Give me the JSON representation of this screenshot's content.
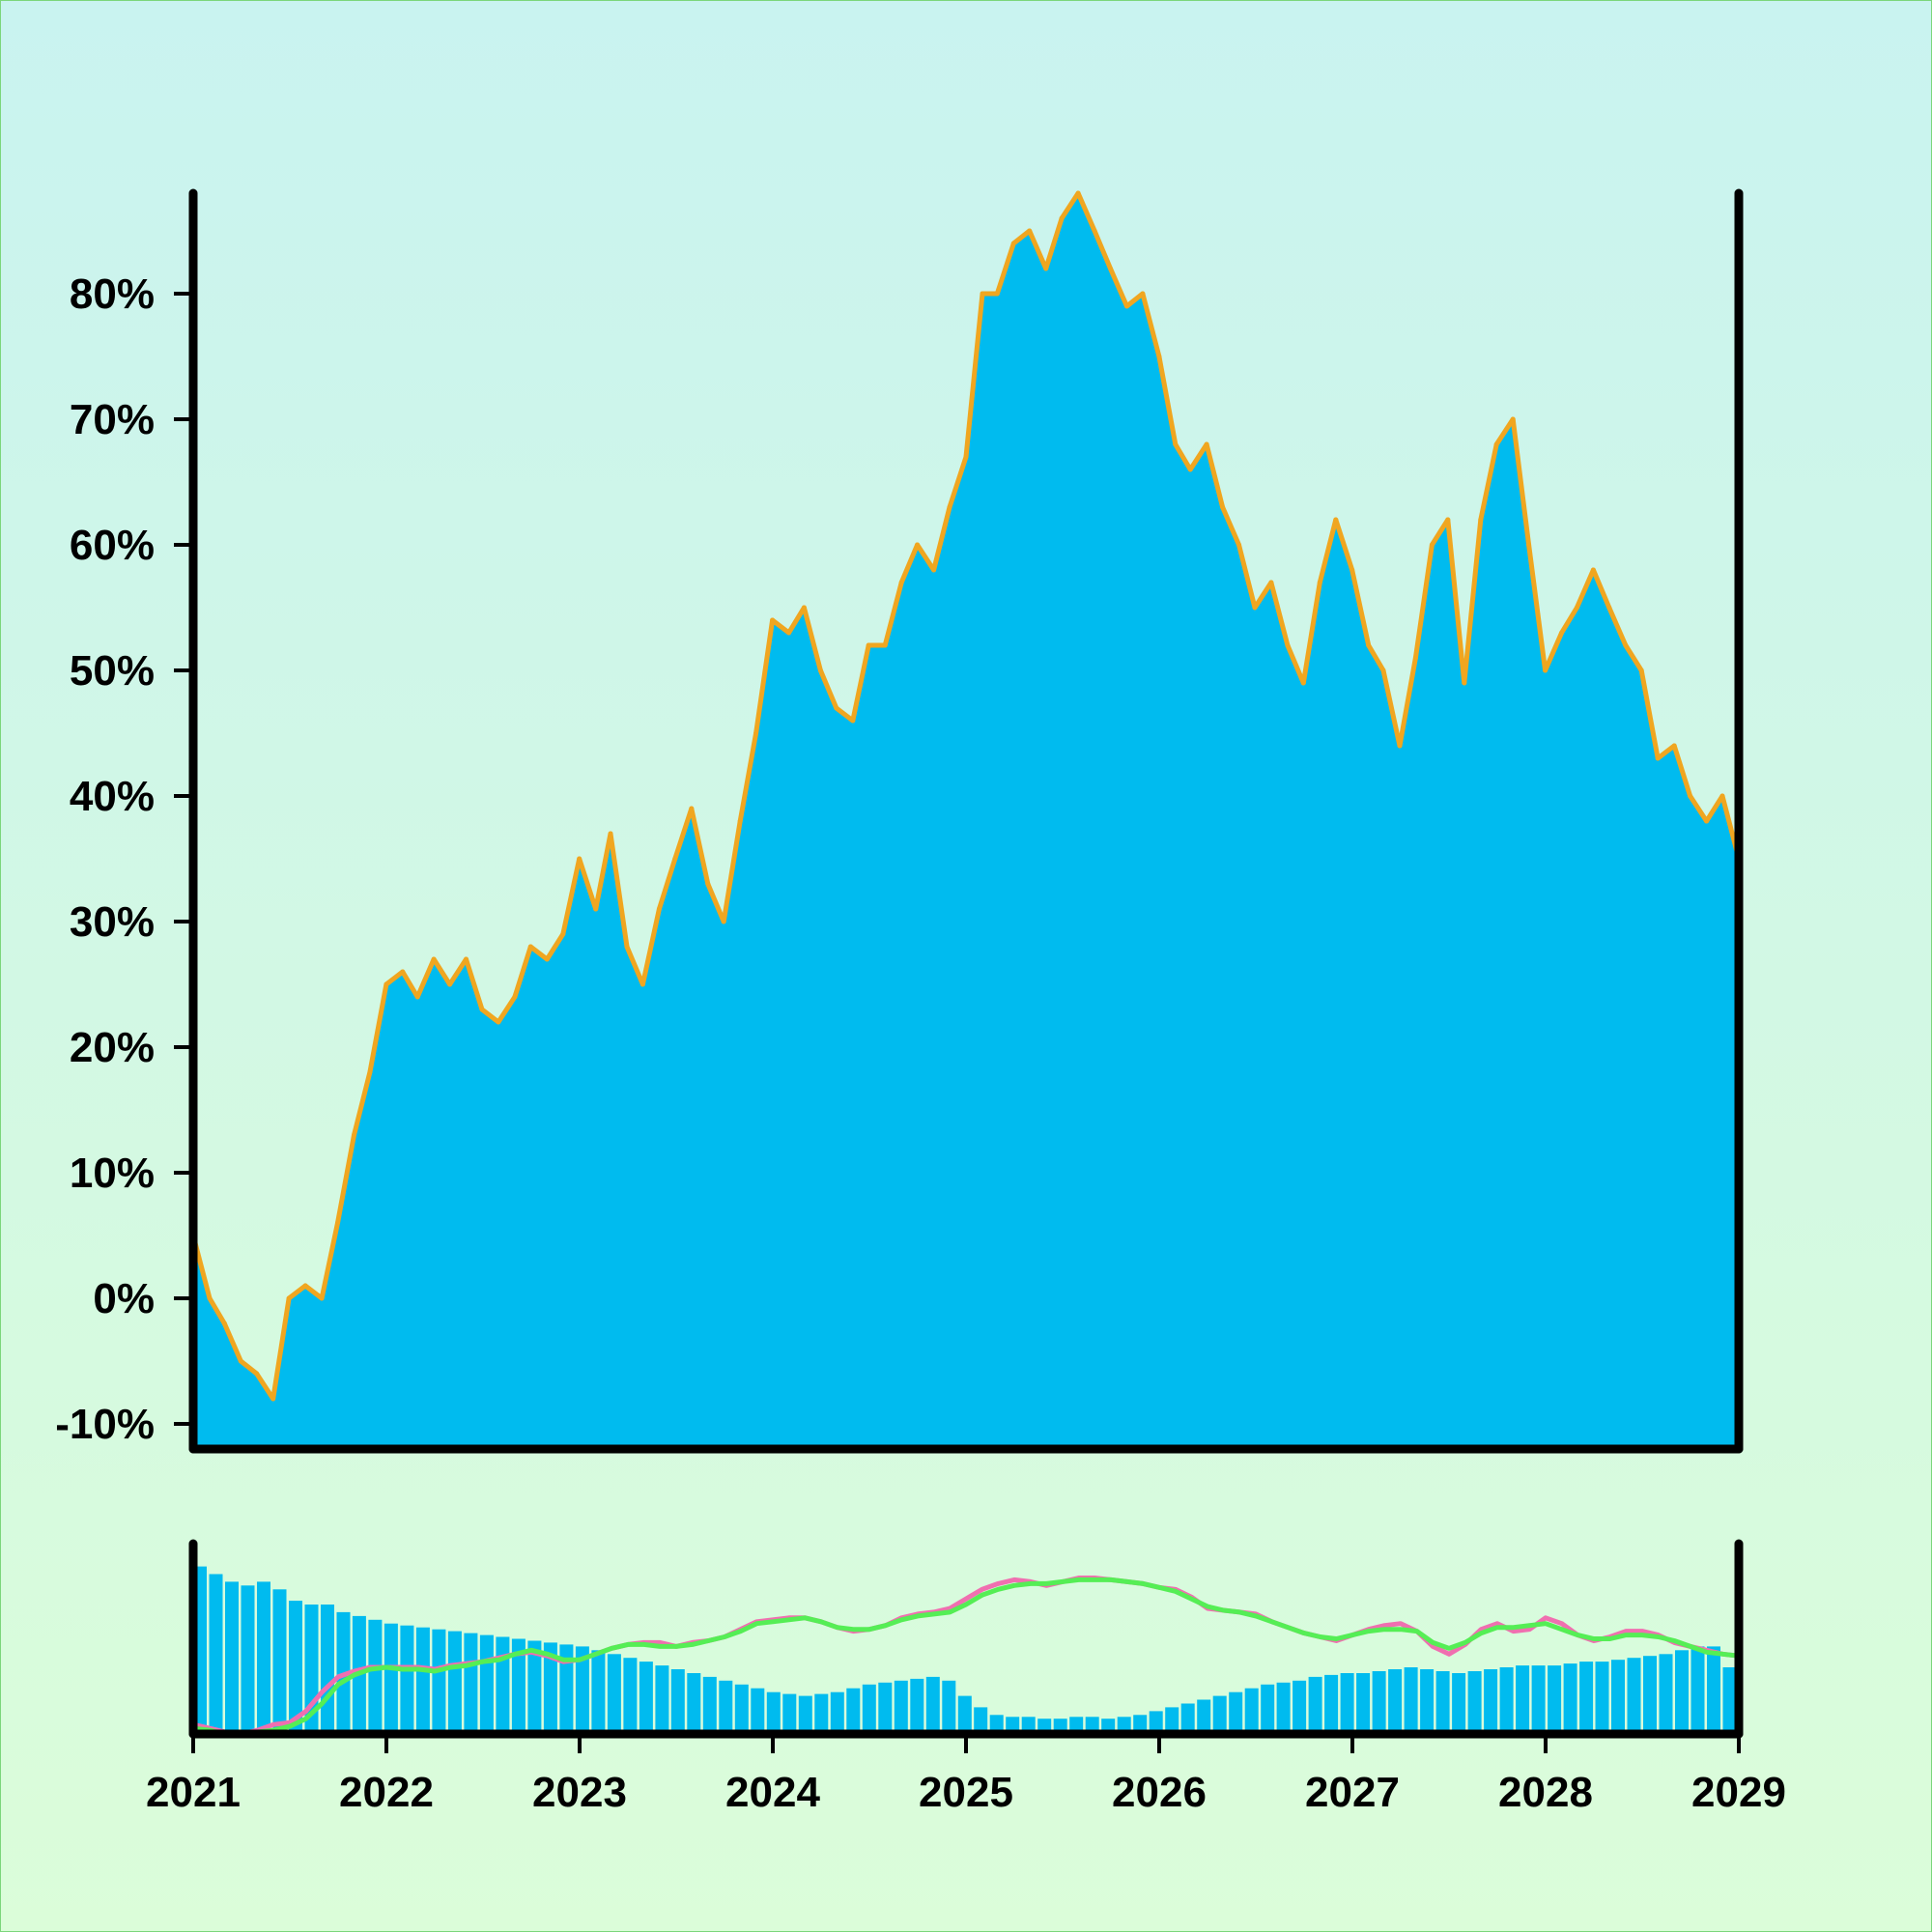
{
  "chart_data": [
    {
      "type": "area",
      "title": "",
      "xlabel": "",
      "ylabel": "",
      "x_range": [
        "2021-01-01",
        "2029-01-01"
      ],
      "ylim": [
        -12,
        88
      ],
      "y_ticks": [
        -10,
        0,
        10,
        20,
        30,
        40,
        50,
        60,
        70,
        80
      ],
      "y_tick_labels": [
        "-10%",
        "0%",
        "10%",
        "20%",
        "30%",
        "40%",
        "50%",
        "60%",
        "70%",
        "80%"
      ],
      "fill_color": "#00bbef",
      "line_color": "#f0a620",
      "series": [
        {
          "x": [
            "2021-01-01",
            "2021-02-01",
            "2021-03-01",
            "2021-04-01",
            "2021-05-01",
            "2021-06-01",
            "2021-07-01",
            "2021-08-01",
            "2021-09-01",
            "2021-10-01",
            "2021-11-01",
            "2021-12-01",
            "2022-01-01",
            "2022-02-01",
            "2022-03-01",
            "2022-04-01",
            "2022-05-01",
            "2022-06-01",
            "2022-07-01",
            "2022-08-01",
            "2022-09-01",
            "2022-10-01",
            "2022-11-01",
            "2022-12-01",
            "2023-01-01",
            "2023-02-01",
            "2023-03-01",
            "2023-04-01",
            "2023-05-01",
            "2023-06-01",
            "2023-07-01",
            "2023-08-01",
            "2023-09-01",
            "2023-10-01",
            "2023-11-01",
            "2023-12-01",
            "2024-01-01",
            "2024-02-01",
            "2024-03-01",
            "2024-04-01",
            "2024-05-01",
            "2024-06-01",
            "2024-07-01",
            "2024-08-01",
            "2024-09-01",
            "2024-10-01",
            "2024-11-01",
            "2024-12-01",
            "2025-01-01",
            "2025-02-01",
            "2025-03-01",
            "2025-04-01",
            "2025-05-01",
            "2025-06-01",
            "2025-07-01",
            "2025-08-01",
            "2025-09-01",
            "2025-10-01",
            "2025-11-01",
            "2025-12-01",
            "2026-01-01",
            "2026-02-01",
            "2026-03-01",
            "2026-04-01",
            "2026-05-01",
            "2026-06-01",
            "2026-07-01",
            "2026-08-01",
            "2026-09-01",
            "2026-10-01",
            "2026-11-01",
            "2026-12-01",
            "2027-01-01",
            "2027-02-01",
            "2027-03-01",
            "2027-04-01",
            "2027-05-01",
            "2027-06-01",
            "2027-07-01",
            "2027-08-01",
            "2027-09-01",
            "2027-10-01",
            "2027-11-01",
            "2027-12-01",
            "2028-01-01",
            "2028-02-01",
            "2028-03-01",
            "2028-04-01",
            "2028-05-01",
            "2028-06-01",
            "2028-07-01",
            "2028-08-01",
            "2028-09-01",
            "2028-10-01",
            "2028-11-01",
            "2028-12-01",
            "2029-01-01"
          ],
          "values": [
            5,
            0,
            -2,
            -5,
            -6,
            -8,
            0,
            1,
            0,
            6,
            13,
            18,
            25,
            26,
            24,
            27,
            25,
            27,
            23,
            22,
            24,
            28,
            27,
            29,
            35,
            31,
            37,
            28,
            25,
            31,
            35,
            39,
            33,
            30,
            38,
            45,
            54,
            53,
            55,
            50,
            47,
            46,
            52,
            52,
            57,
            60,
            58,
            63,
            67,
            80,
            80,
            84,
            85,
            82,
            86,
            88,
            85,
            82,
            79,
            80,
            75,
            68,
            66,
            68,
            63,
            60,
            55,
            57,
            52,
            49,
            57,
            62,
            58,
            52,
            50,
            44,
            51,
            60,
            62,
            49,
            62,
            68,
            70,
            60,
            50,
            53,
            55,
            58,
            55,
            52,
            50,
            43,
            44,
            40,
            38,
            40,
            35
          ]
        }
      ]
    },
    {
      "type": "bar",
      "title": "",
      "xlabel": "",
      "ylabel": "",
      "x_range": [
        "2021-01-01",
        "2029-01-01"
      ],
      "x_ticks": [
        "2021",
        "2022",
        "2023",
        "2024",
        "2025",
        "2026",
        "2027",
        "2028",
        "2029"
      ],
      "ylim": [
        0,
        100
      ],
      "bar_color": "#00bbef",
      "bar_values": [
        88,
        84,
        80,
        78,
        80,
        76,
        70,
        68,
        68,
        64,
        62,
        60,
        58,
        57,
        56,
        55,
        54,
        53,
        52,
        51,
        50,
        49,
        48,
        47,
        46,
        44,
        42,
        40,
        38,
        36,
        34,
        32,
        30,
        28,
        26,
        24,
        22,
        21,
        20,
        21,
        22,
        24,
        26,
        27,
        28,
        29,
        30,
        28,
        20,
        14,
        10,
        9,
        9,
        8,
        8,
        9,
        9,
        8,
        9,
        10,
        12,
        14,
        16,
        18,
        20,
        22,
        24,
        26,
        27,
        28,
        30,
        31,
        32,
        32,
        33,
        34,
        35,
        34,
        33,
        32,
        33,
        34,
        35,
        36,
        36,
        36,
        37,
        38,
        38,
        39,
        40,
        41,
        42,
        44,
        46,
        46,
        35
      ],
      "series": [
        {
          "name": "",
          "color": "#f06fb0",
          "values": [
            5,
            3,
            1,
            0,
            2,
            5,
            6,
            12,
            22,
            30,
            33,
            35,
            35,
            35,
            35,
            34,
            36,
            37,
            38,
            40,
            42,
            43,
            41,
            38,
            39,
            42,
            45,
            47,
            48,
            48,
            46,
            48,
            49,
            51,
            55,
            59,
            60,
            61,
            61,
            59,
            56,
            54,
            55,
            57,
            61,
            63,
            64,
            66,
            71,
            76,
            79,
            81,
            80,
            78,
            80,
            82,
            82,
            81,
            80,
            79,
            77,
            76,
            72,
            66,
            65,
            64,
            63,
            59,
            56,
            53,
            51,
            49,
            52,
            55,
            57,
            58,
            54,
            46,
            42,
            47,
            55,
            58,
            54,
            55,
            61,
            58,
            52,
            49,
            51,
            54,
            54,
            52,
            48,
            46,
            44,
            42,
            41
          ]
        },
        {
          "name": "",
          "color": "#55ee55",
          "values": [
            3,
            2,
            0,
            0,
            1,
            2,
            4,
            8,
            16,
            26,
            31,
            34,
            35,
            34,
            34,
            33,
            35,
            36,
            38,
            39,
            42,
            44,
            42,
            39,
            39,
            42,
            45,
            47,
            47,
            46,
            46,
            47,
            49,
            51,
            54,
            58,
            59,
            60,
            61,
            59,
            56,
            55,
            55,
            57,
            60,
            62,
            63,
            64,
            68,
            73,
            76,
            78,
            79,
            79,
            80,
            81,
            81,
            81,
            80,
            79,
            77,
            75,
            71,
            67,
            65,
            64,
            62,
            59,
            56,
            53,
            51,
            50,
            52,
            54,
            55,
            55,
            54,
            48,
            45,
            48,
            53,
            56,
            56,
            57,
            58,
            55,
            52,
            50,
            50,
            52,
            52,
            51,
            49,
            46,
            43,
            42,
            41
          ]
        }
      ]
    }
  ]
}
